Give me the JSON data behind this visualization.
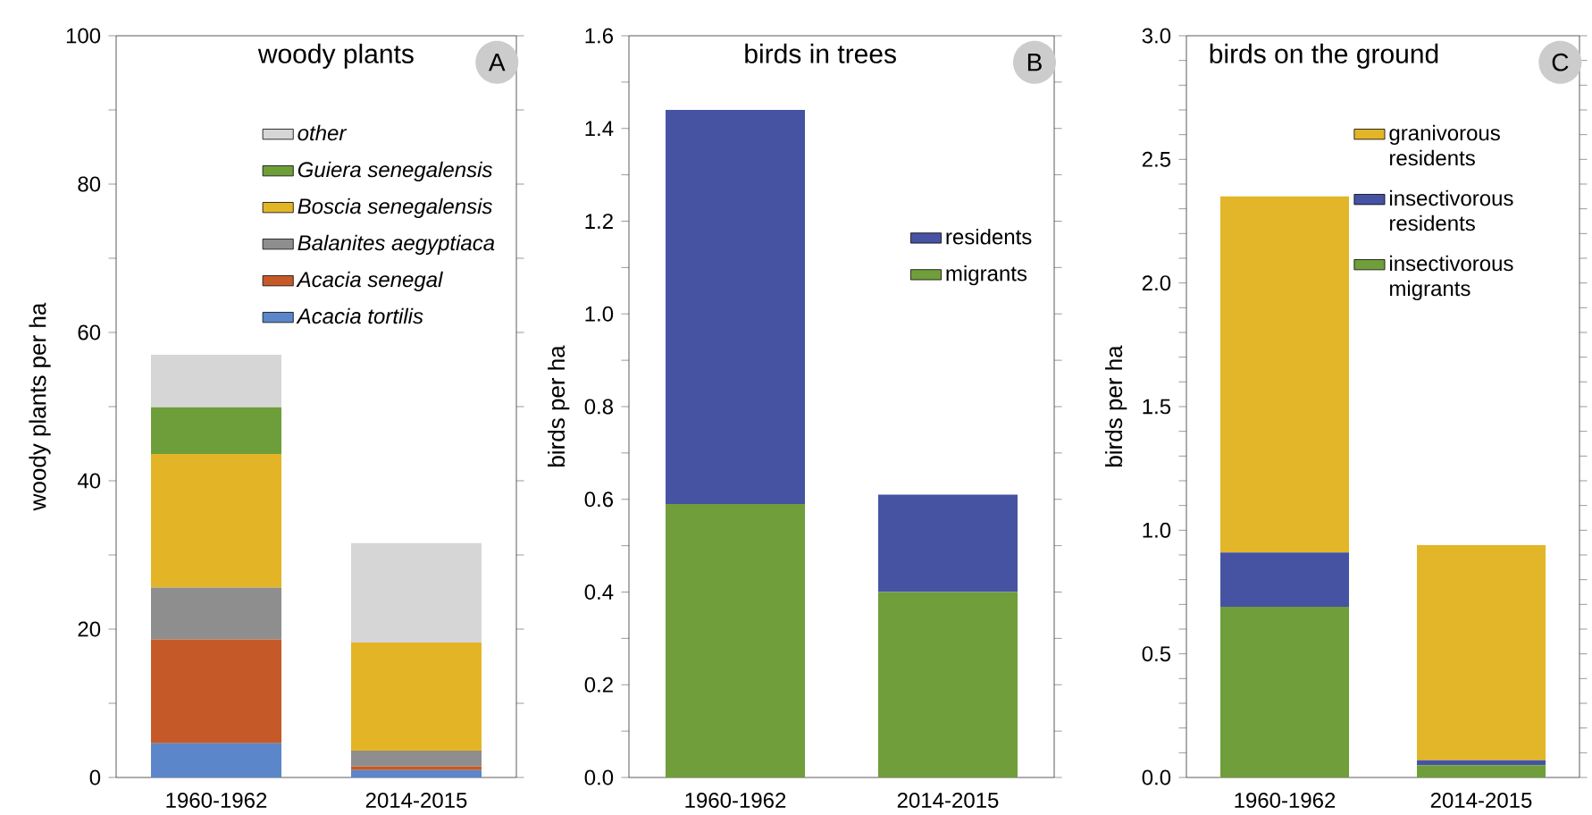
{
  "chart_data": [
    {
      "type": "bar",
      "stacked": true,
      "title": "woody plants",
      "ylabel": "woody plants per ha",
      "categories": [
        "1960-1962",
        "2014-2015"
      ],
      "ylim": [
        0,
        100
      ],
      "yticks": [
        0,
        {
          "value": 10,
          "label": null
        },
        20,
        {
          "value": 30,
          "label": null
        },
        40,
        {
          "value": 50,
          "label": null
        },
        60,
        {
          "value": 70,
          "label": null
        },
        80,
        {
          "value": 90,
          "label": null
        },
        100
      ],
      "series": [
        {
          "name": "Acacia tortilis",
          "color": "#5b86c9",
          "values": [
            4.6,
            1.0
          ]
        },
        {
          "name": "Acacia senegal",
          "color": "#c55a28",
          "values": [
            14,
            0.5
          ]
        },
        {
          "name": "Balanites aegyptiaca",
          "color": "#8e8e8e",
          "values": [
            7,
            2.1
          ]
        },
        {
          "name": "Boscia senegalensis",
          "color": "#e3b526",
          "values": [
            18,
            14.6
          ]
        },
        {
          "name": "Guiera senegalensis",
          "color": "#6e9e3a",
          "values": [
            6.3,
            0
          ]
        },
        {
          "name": "other",
          "color": "#d6d6d6",
          "values": [
            7.1,
            13.4
          ]
        }
      ],
      "legend": "top right",
      "annotations": [
        "A"
      ]
    },
    {
      "type": "bar",
      "stacked": true,
      "title": "birds in trees",
      "ylabel": "birds per ha",
      "categories": [
        "1960-1962",
        "2014-2015"
      ],
      "ylim": [
        0,
        1.6
      ],
      "yticks": [
        {
          "value": 0,
          "label": "0.0"
        },
        {
          "value": 0.1,
          "label": null
        },
        {
          "value": 0.2,
          "label": "0.2"
        },
        {
          "value": 0.3,
          "label": null
        },
        {
          "value": 0.4,
          "label": "0.4"
        },
        {
          "value": 0.5,
          "label": null
        },
        {
          "value": 0.6,
          "label": "0.6"
        },
        {
          "value": 0.7,
          "label": null
        },
        {
          "value": 0.8,
          "label": "0.8"
        },
        {
          "value": 0.9,
          "label": null
        },
        {
          "value": 1.0,
          "label": "1.0"
        },
        {
          "value": 1.1,
          "label": null
        },
        {
          "value": 1.2,
          "label": "1.2"
        },
        {
          "value": 1.3,
          "label": null
        },
        {
          "value": 1.4,
          "label": "1.4"
        },
        {
          "value": 1.5,
          "label": null
        },
        {
          "value": 1.6,
          "label": "1.6"
        }
      ],
      "series": [
        {
          "name": "migrants",
          "color": "#6f9e3a",
          "values": [
            0.59,
            0.4
          ]
        },
        {
          "name": "residents",
          "color": "#4653a3",
          "values": [
            0.85,
            0.21
          ]
        }
      ],
      "legend": "right",
      "annotations": [
        "B"
      ]
    },
    {
      "type": "bar",
      "stacked": true,
      "title": "birds on the ground",
      "ylabel": "birds per ha",
      "categories": [
        "1960-1962",
        "2014-2015"
      ],
      "ylim": [
        0,
        3.0
      ],
      "yticks": [
        {
          "value": 0,
          "label": "0.0"
        },
        {
          "value": 0.1,
          "label": null
        },
        {
          "value": 0.2,
          "label": null
        },
        {
          "value": 0.3,
          "label": null
        },
        {
          "value": 0.4,
          "label": null
        },
        {
          "value": 0.5,
          "label": "0.5"
        },
        {
          "value": 0.6,
          "label": null
        },
        {
          "value": 0.7,
          "label": null
        },
        {
          "value": 0.8,
          "label": null
        },
        {
          "value": 0.9,
          "label": null
        },
        {
          "value": 1.0,
          "label": "1.0"
        },
        {
          "value": 1.1,
          "label": null
        },
        {
          "value": 1.2,
          "label": null
        },
        {
          "value": 1.3,
          "label": null
        },
        {
          "value": 1.4,
          "label": null
        },
        {
          "value": 1.5,
          "label": "1.5"
        },
        {
          "value": 1.6,
          "label": null
        },
        {
          "value": 1.7,
          "label": null
        },
        {
          "value": 1.8,
          "label": null
        },
        {
          "value": 1.9,
          "label": null
        },
        {
          "value": 2.0,
          "label": "2.0"
        },
        {
          "value": 2.1,
          "label": null
        },
        {
          "value": 2.2,
          "label": null
        },
        {
          "value": 2.3,
          "label": null
        },
        {
          "value": 2.4,
          "label": null
        },
        {
          "value": 2.5,
          "label": "2.5"
        },
        {
          "value": 2.6,
          "label": null
        },
        {
          "value": 2.7,
          "label": null
        },
        {
          "value": 2.8,
          "label": null
        },
        {
          "value": 2.9,
          "label": null
        },
        {
          "value": 3.0,
          "label": "3.0"
        }
      ],
      "series": [
        {
          "name": "insectivorous migrants",
          "color": "#6f9e3a",
          "values": [
            0.69,
            0.05
          ]
        },
        {
          "name": "insectivorous residents",
          "color": "#4653a3",
          "values": [
            0.22,
            0.02
          ]
        },
        {
          "name": "granivorous residents",
          "color": "#e2b628",
          "values": [
            1.44,
            0.87
          ]
        }
      ],
      "legend": "top right",
      "annotations": [
        "C"
      ]
    }
  ]
}
